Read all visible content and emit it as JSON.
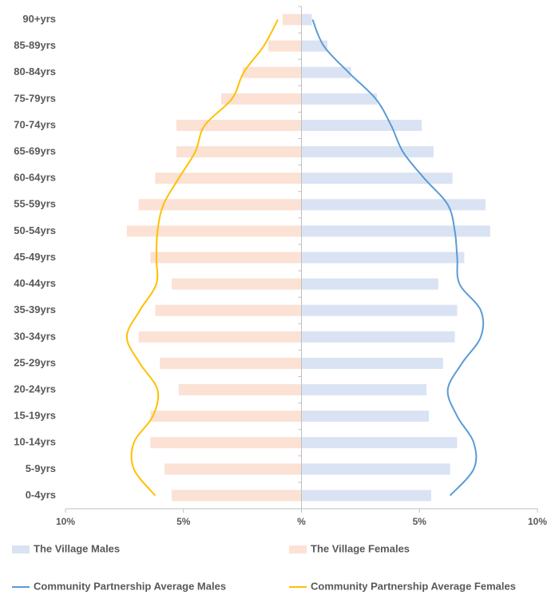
{
  "chart_data": {
    "type": "bar",
    "orientation": "horizontal",
    "categories": [
      "90+yrs",
      "85-89yrs",
      "80-84yrs",
      "75-79yrs",
      "70-74yrs",
      "65-69yrs",
      "60-64yrs",
      "55-59yrs",
      "50-54yrs",
      "45-49yrs",
      "40-44yrs",
      "35-39yrs",
      "30-34yrs",
      "25-29yrs",
      "20-24yrs",
      "15-19yrs",
      "10-14yrs",
      "5-9yrs",
      "0-4yrs"
    ],
    "xlim": [
      -10,
      10
    ],
    "xticks": [
      {
        "value": -10,
        "label": "10%"
      },
      {
        "value": -5,
        "label": "5%"
      },
      {
        "value": 0,
        "label": "%"
      },
      {
        "value": 5,
        "label": "5%"
      },
      {
        "value": 10,
        "label": "10%"
      }
    ],
    "series": [
      {
        "name": "The Village Males",
        "type": "bar",
        "color": "#dae3f3",
        "values": [
          0.44,
          1.1,
          2.1,
          3.2,
          5.1,
          5.6,
          6.4,
          7.8,
          8.0,
          6.9,
          5.8,
          6.6,
          6.5,
          6.0,
          5.3,
          5.4,
          6.6,
          6.3,
          5.5
        ]
      },
      {
        "name": "The Village Females",
        "type": "bar",
        "color": "#fbe2d5",
        "values": [
          -0.8,
          -1.4,
          -2.5,
          -3.4,
          -5.3,
          -5.3,
          -6.2,
          -6.9,
          -7.4,
          -6.4,
          -5.5,
          -6.2,
          -6.9,
          -6.0,
          -5.2,
          -6.4,
          -6.4,
          -5.8,
          -5.5
        ]
      },
      {
        "name": "Community Partnership Average Males",
        "type": "line",
        "color": "#5b9bd5",
        "values": [
          0.47,
          0.95,
          2.0,
          3.15,
          3.8,
          4.3,
          5.2,
          6.2,
          6.5,
          6.6,
          6.7,
          7.6,
          7.6,
          6.8,
          6.2,
          6.6,
          7.3,
          7.3,
          6.3
        ]
      },
      {
        "name": "Community Partnership Average Females",
        "type": "line",
        "color": "#ffc000",
        "values": [
          -1.0,
          -1.6,
          -2.45,
          -2.95,
          -4.1,
          -4.5,
          -5.2,
          -5.85,
          -6.1,
          -6.15,
          -6.15,
          -6.85,
          -7.4,
          -6.85,
          -6.1,
          -6.3,
          -7.1,
          -7.1,
          -6.2
        ]
      }
    ]
  }
}
